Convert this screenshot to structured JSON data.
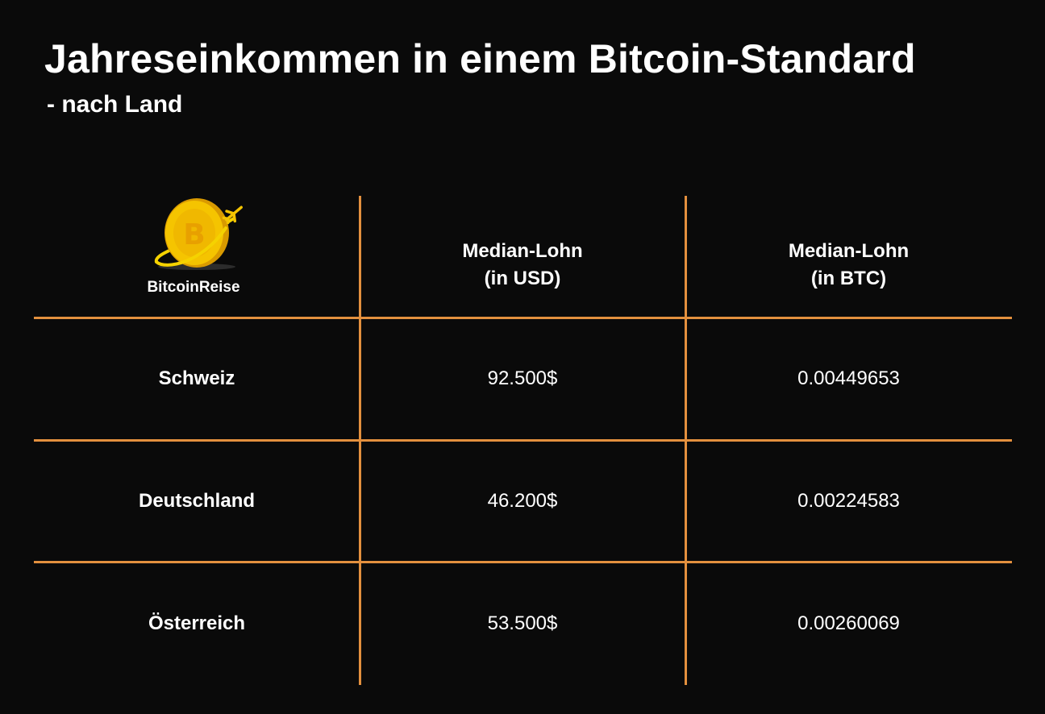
{
  "header": {
    "title": "Jahreseinkommen in einem Bitcoin-Standard",
    "subtitle": "- nach Land"
  },
  "logo": {
    "icon": "bitcoin-coin-airplane-icon",
    "text": "BitcoinReise",
    "colors": {
      "coin": "#f5c400",
      "coin_dark": "#d99a00",
      "ring": "#f5d200"
    }
  },
  "colors": {
    "background": "#0a0a0a",
    "grid": "#e3903e",
    "text": "#ffffff"
  },
  "chart_data": {
    "type": "table",
    "columns": [
      {
        "line1": "",
        "line2": ""
      },
      {
        "line1": "Median-Lohn",
        "line2": "(in USD)"
      },
      {
        "line1": "Median-Lohn",
        "line2": "(in BTC)"
      }
    ],
    "rows": [
      {
        "country": "Schweiz",
        "usd": "92.500$",
        "btc": "0.00449653"
      },
      {
        "country": "Deutschland",
        "usd": "46.200$",
        "btc": "0.00224583"
      },
      {
        "country": "Österreich",
        "usd": "53.500$",
        "btc": "0.00260069"
      }
    ]
  }
}
